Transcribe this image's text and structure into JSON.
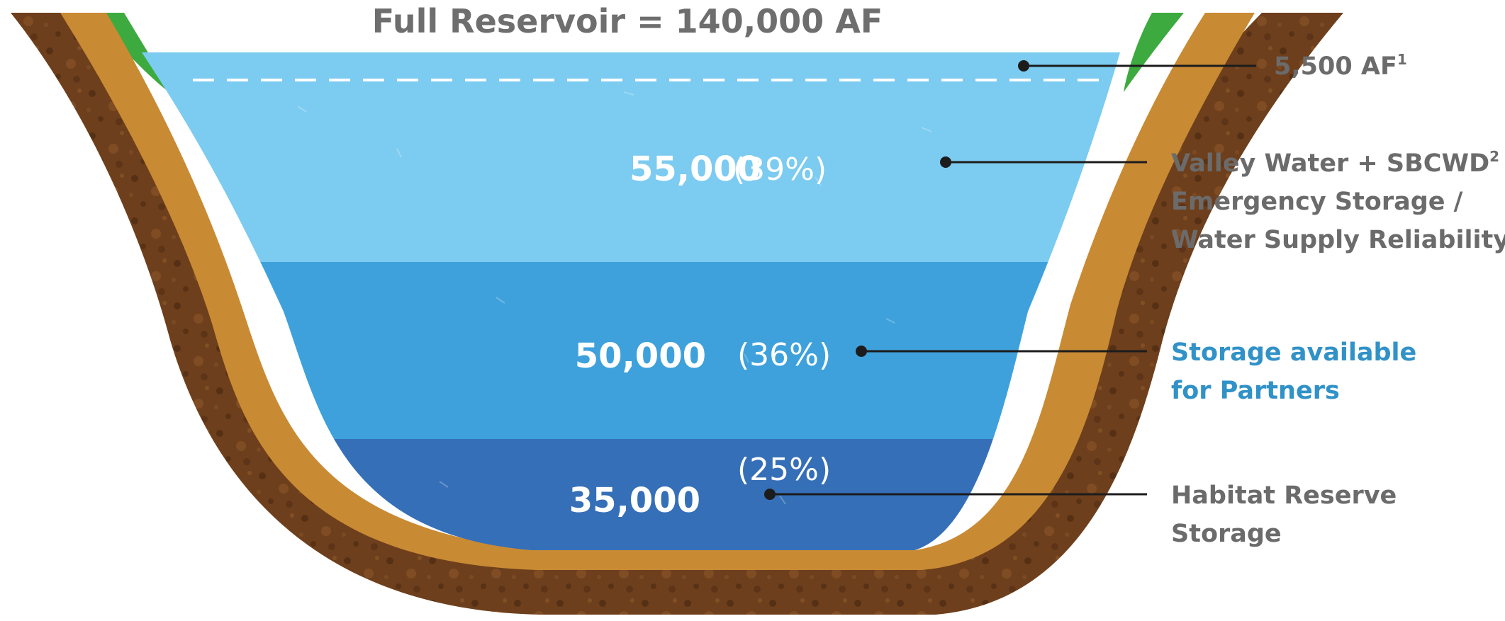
{
  "title": "Full Reservoir = 140,000 AF",
  "layers": [
    {
      "amount": "55,000",
      "percent": "(39%)",
      "label_lines": [
        "Valley Water + SBCWD",
        "Emergency Storage /",
        "Water Supply Reliability"
      ],
      "footnote": "2",
      "color": "#7ccbf0"
    },
    {
      "amount": "50,000",
      "percent": "(36%)",
      "label_lines": [
        "Storage available",
        "for Partners"
      ],
      "color": "#3ea1dc"
    },
    {
      "amount": "35,000",
      "percent": "(25%)",
      "label_lines": [
        "Habitat Reserve",
        "Storage"
      ],
      "color": "#356fb8"
    }
  ],
  "top_reserve": {
    "amount": "5,500 AF",
    "footnote": "1"
  },
  "colors": {
    "soil": "#6e3f1c",
    "soil_dark": "#4b2911",
    "soil_light": "#8a5528",
    "band": "#c98a34",
    "grass": "#3daa3f",
    "label_gray": "#6b6b6b",
    "label_blue": "#3192c8"
  }
}
